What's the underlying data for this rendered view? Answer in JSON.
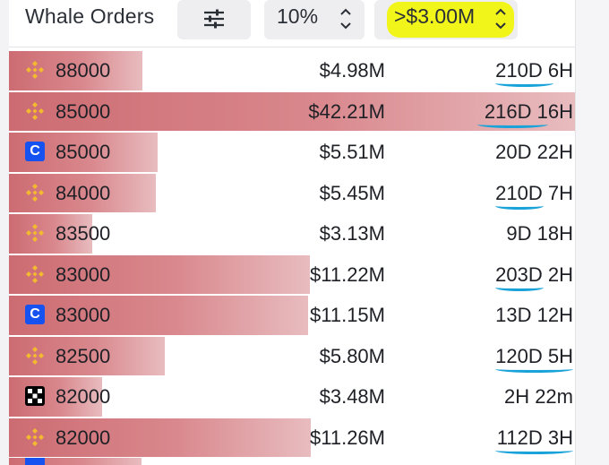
{
  "header": {
    "title": "Whale Orders",
    "filter_icon": "sliders-icon",
    "percent_select": "10%",
    "amount_select": ">$3.00M",
    "highlight_color": "#f2f51a"
  },
  "colors": {
    "bar": "#cc6c72",
    "underline": "#1aa3d9",
    "binance": "#f3ba2f",
    "coinbase": "#1652f0"
  },
  "orders": [
    {
      "exchange": "binance",
      "price": "88000",
      "amount": "$4.98M",
      "age": "210D 6H",
      "bar": 0.235,
      "underline": true
    },
    {
      "exchange": "binance",
      "price": "85000",
      "amount": "$42.21M",
      "age": "216D 16H",
      "bar": 1.0,
      "underline": true
    },
    {
      "exchange": "coinbase",
      "price": "85000",
      "amount": "$5.51M",
      "age": "20D 22H",
      "bar": 0.262,
      "underline": false
    },
    {
      "exchange": "binance",
      "price": "84000",
      "amount": "$5.45M",
      "age": "210D 7H",
      "bar": 0.259,
      "underline": true
    },
    {
      "exchange": "binance",
      "price": "83500",
      "amount": "$3.13M",
      "age": "9D 18H",
      "bar": 0.147,
      "underline": false
    },
    {
      "exchange": "binance",
      "price": "83000",
      "amount": "$11.22M",
      "age": "203D 2H",
      "bar": 0.532,
      "underline": true
    },
    {
      "exchange": "coinbase",
      "price": "83000",
      "amount": "$11.15M",
      "age": "13D 12H",
      "bar": 0.529,
      "underline": false
    },
    {
      "exchange": "binance",
      "price": "82500",
      "amount": "$5.80M",
      "age": "120D 5H",
      "bar": 0.275,
      "underline": true
    },
    {
      "exchange": "okx",
      "price": "82000",
      "amount": "$3.48M",
      "age": "2H 22m",
      "bar": 0.165,
      "underline": false
    },
    {
      "exchange": "binance",
      "price": "82000",
      "amount": "$11.26M",
      "age": "112D 3H",
      "bar": 0.534,
      "underline": true
    }
  ]
}
